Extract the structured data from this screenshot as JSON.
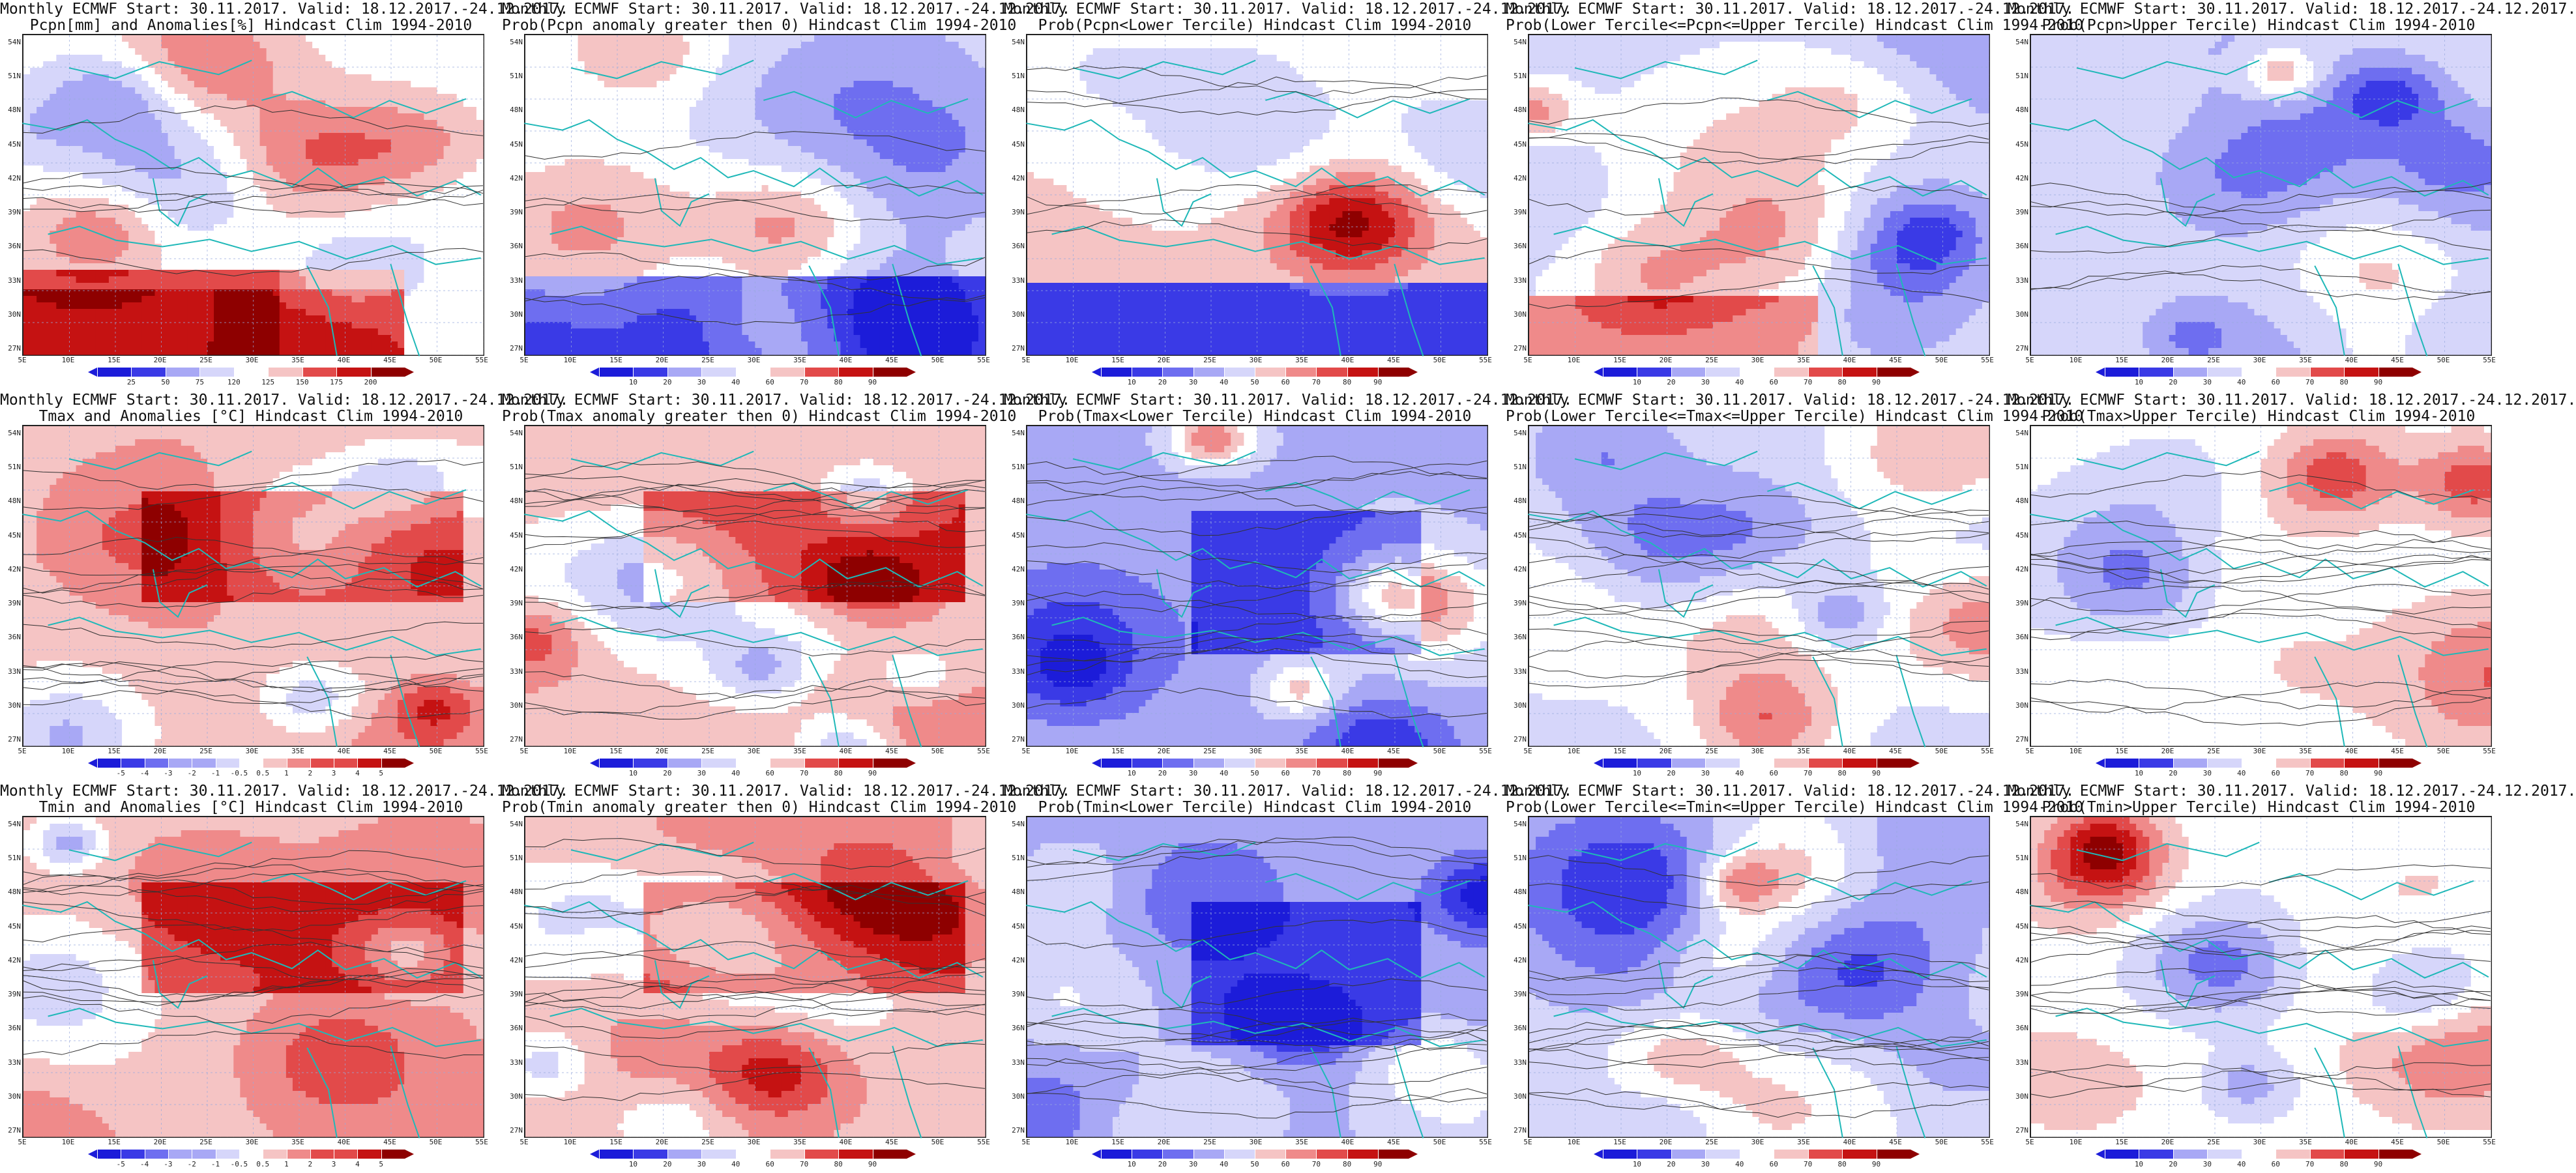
{
  "panels": [
    {
      "title": [
        "Monthly ECMWF Start: 30.11.2017. Valid: 18.12.2017.-24.12.2017.",
        "Pcpn[mm] and Anomalies[%] Hindcast Clim 1994-2010"
      ],
      "scale": "pcpn_anom",
      "field": "pcpn_anom",
      "cbar": [
        "25",
        "50",
        "75",
        "120",
        "125",
        "150",
        "175",
        "200"
      ]
    },
    {
      "title": [
        "Monthly ECMWF Start: 30.11.2017. Valid: 18.12.2017.-24.12.2017.",
        "Prob(Pcpn anomaly greater then 0) Hindcast Clim 1994-2010"
      ],
      "scale": "prob",
      "field": "pcpn_prob",
      "cbar": [
        "10",
        "20",
        "30",
        "40",
        "60",
        "70",
        "80",
        "90"
      ]
    },
    {
      "title": [
        "Monthly ECMWF Start: 30.11.2017. Valid: 18.12.2017.-24.12.2017.",
        "Prob(Pcpn<Lower Tercile) Hindcast Clim 1994-2010"
      ],
      "scale": "prob",
      "field": "pcpn_low",
      "cbar": [
        "10",
        "20",
        "30",
        "40",
        "50",
        "60",
        "70",
        "80",
        "90"
      ]
    },
    {
      "title": [
        "Monthly ECMWF Start: 30.11.2017. Valid: 18.12.2017.-24.12.2017.",
        "Prob(Lower Tercile<=Pcpn<=Upper Tercile) Hindcast Clim 1994-2010"
      ],
      "scale": "prob",
      "field": "pcpn_mid",
      "cbar": [
        "10",
        "20",
        "30",
        "40",
        "60",
        "70",
        "80",
        "90"
      ]
    },
    {
      "title": [
        "Monthly ECMWF Start: 30.11.2017. Valid: 18.12.2017.-24.12.2017.",
        "Prob(Pcpn>Upper Tercile) Hindcast Clim 1994-2010"
      ],
      "scale": "prob",
      "field": "pcpn_up",
      "cbar": [
        "10",
        "20",
        "30",
        "40",
        "60",
        "70",
        "80",
        "90"
      ]
    },
    {
      "title": [
        "Monthly ECMWF Start: 30.11.2017. Valid: 18.12.2017.-24.12.2017.",
        "Tmax and Anomalies [°C] Hindcast Clim 1994-2010"
      ],
      "scale": "temp_anom",
      "field": "tmax_anom",
      "cbar": [
        "-5",
        "-4",
        "-3",
        "-2",
        "-1",
        "-0.5",
        "0.5",
        "1",
        "2",
        "3",
        "4",
        "5"
      ]
    },
    {
      "title": [
        "Monthly ECMWF Start: 30.11.2017. Valid: 18.12.2017.-24.12.2017.",
        "Prob(Tmax anomaly greater then 0) Hindcast Clim 1994-2010"
      ],
      "scale": "prob",
      "field": "tmax_prob",
      "cbar": [
        "10",
        "20",
        "30",
        "40",
        "60",
        "70",
        "80",
        "90"
      ]
    },
    {
      "title": [
        "Monthly ECMWF Start: 30.11.2017. Valid: 18.12.2017.-24.12.2017.",
        "Prob(Tmax<Lower Tercile) Hindcast Clim 1994-2010"
      ],
      "scale": "prob",
      "field": "tmax_low",
      "cbar": [
        "10",
        "20",
        "30",
        "40",
        "50",
        "60",
        "70",
        "80",
        "90"
      ]
    },
    {
      "title": [
        "Monthly ECMWF Start: 30.11.2017. Valid: 18.12.2017.-24.12.2017.",
        "Prob(Lower Tercile<=Tmax<=Upper Tercile) Hindcast Clim 1994-2010"
      ],
      "scale": "prob",
      "field": "tmax_mid",
      "cbar": [
        "10",
        "20",
        "30",
        "40",
        "60",
        "70",
        "80",
        "90"
      ]
    },
    {
      "title": [
        "Monthly ECMWF Start: 30.11.2017. Valid: 18.12.2017.-24.12.2017.",
        "Prob(Tmax>Upper Tercile) Hindcast Clim 1994-2010"
      ],
      "scale": "prob",
      "field": "tmax_up",
      "cbar": [
        "10",
        "20",
        "30",
        "40",
        "60",
        "70",
        "80",
        "90"
      ]
    },
    {
      "title": [
        "Monthly ECMWF Start: 30.11.2017. Valid: 18.12.2017.-24.12.2017.",
        "Tmin and Anomalies [°C] Hindcast Clim 1994-2010"
      ],
      "scale": "temp_anom",
      "field": "tmin_anom",
      "cbar": [
        "-5",
        "-4",
        "-3",
        "-2",
        "-1",
        "-0.5",
        "0.5",
        "1",
        "2",
        "3",
        "4",
        "5"
      ]
    },
    {
      "title": [
        "Monthly ECMWF Start: 30.11.2017. Valid: 18.12.2017.-24.12.2017.",
        "Prob(Tmin anomaly greater then 0) Hindcast Clim 1994-2010"
      ],
      "scale": "prob",
      "field": "tmin_prob",
      "cbar": [
        "10",
        "20",
        "30",
        "40",
        "60",
        "70",
        "80",
        "90"
      ]
    },
    {
      "title": [
        "Monthly ECMWF Start: 30.11.2017. Valid: 18.12.2017.-24.12.2017.",
        "Prob(Tmin<Lower Tercile) Hindcast Clim 1994-2010"
      ],
      "scale": "prob",
      "field": "tmin_low",
      "cbar": [
        "10",
        "20",
        "30",
        "40",
        "50",
        "60",
        "70",
        "80",
        "90"
      ]
    },
    {
      "title": [
        "Monthly ECMWF Start: 30.11.2017. Valid: 18.12.2017.-24.12.2017.",
        "Prob(Lower Tercile<=Tmin<=Upper Tercile) Hindcast Clim 1994-2010"
      ],
      "scale": "prob",
      "field": "tmin_mid",
      "cbar": [
        "10",
        "20",
        "30",
        "40",
        "60",
        "70",
        "80",
        "90"
      ]
    },
    {
      "title": [
        "Monthly ECMWF Start: 30.11.2017. Valid: 18.12.2017.-24.12.2017.",
        "Prob(Tmin>Upper Tercile) Hindcast Clim 1994-2010"
      ],
      "scale": "prob",
      "field": "tmin_up",
      "cbar": [
        "10",
        "20",
        "30",
        "40",
        "60",
        "70",
        "80",
        "90"
      ]
    }
  ],
  "lat_labels": [
    "54N",
    "51N",
    "48N",
    "45N",
    "42N",
    "39N",
    "36N",
    "33N",
    "30N",
    "27N"
  ],
  "lon_labels": [
    "5E",
    "10E",
    "15E",
    "20E",
    "25E",
    "30E",
    "35E",
    "40E",
    "45E",
    "50E",
    "55E"
  ],
  "colors": {
    "prob": [
      "#1c1cd9",
      "#3a3ae6",
      "#6e6ef0",
      "#a8a8f5",
      "#d6d6fa",
      "#ffffff",
      "#f5c4c4",
      "#ef8a8a",
      "#e24a4a",
      "#c51212",
      "#8e0000"
    ],
    "coast": "#1fb8b8",
    "contour": "#333333"
  }
}
